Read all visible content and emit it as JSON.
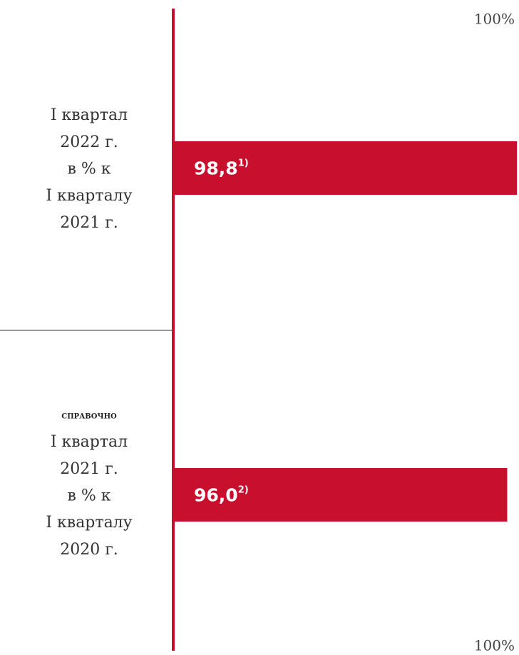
{
  "chart_data": {
    "type": "barh",
    "categories": [
      [
        "I квартал",
        "2022 г.",
        "в % к",
        "I кварталу",
        "2021 г."
      ],
      [
        "I квартал",
        "2021 г.",
        "в % к",
        "I кварталу",
        "2020 г."
      ]
    ],
    "category_notes": [
      null,
      "СПРАВОЧНО"
    ],
    "values": [
      98.8,
      96.0
    ],
    "value_labels": [
      "98,8",
      "96,0"
    ],
    "value_footnotes": [
      "1)",
      "2)"
    ],
    "color": "#c8102e",
    "xlim": [
      0,
      100
    ],
    "xticks": [
      {
        "value": 100,
        "label": "100%"
      }
    ]
  }
}
